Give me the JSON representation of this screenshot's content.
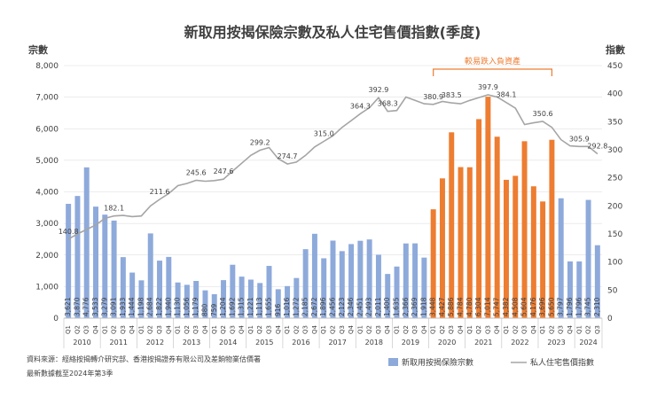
{
  "chart_data": {
    "type": "bar+line",
    "title": "新取用按揭保險宗數及私人住宅售價指數(季度)",
    "y_left_label": "宗數",
    "y_right_label": "指數",
    "ylim_left": [
      0,
      8000
    ],
    "ylim_right": [
      0,
      450
    ],
    "y_left_ticks": [
      "0",
      "1,000",
      "2,000",
      "3,000",
      "4,000",
      "5,000",
      "6,000",
      "7,000",
      "8,000"
    ],
    "y_right_ticks": [
      "0",
      "50",
      "100",
      "150",
      "200",
      "250",
      "300",
      "350",
      "400",
      "450"
    ],
    "quarter_labels": [
      "Q1",
      "Q2",
      "Q3",
      "Q4"
    ],
    "years": [
      "2010",
      "2011",
      "2012",
      "2013",
      "2014",
      "2015",
      "2016",
      "2017",
      "2018",
      "2019",
      "2020",
      "2021",
      "2022",
      "2023",
      "2024"
    ],
    "bar_values": [
      3621,
      3870,
      4776,
      3533,
      3279,
      3091,
      1933,
      1444,
      1198,
      2684,
      1822,
      1940,
      1130,
      1056,
      1179,
      880,
      759,
      1204,
      1692,
      1315,
      1221,
      1113,
      1655,
      916,
      1016,
      1272,
      2185,
      2672,
      1896,
      2456,
      2123,
      2346,
      2451,
      2493,
      2011,
      1400,
      1635,
      2366,
      2369,
      1918,
      3448,
      4427,
      5886,
      4784,
      4780,
      6304,
      7014,
      5747,
      4382,
      4508,
      5604,
      4176,
      3696,
      5650,
      3797,
      1796,
      1796,
      3745,
      2310
    ],
    "bar_labels": [
      "3,621",
      "3,870",
      "4,776",
      "3,533",
      "3,279",
      "3,091",
      "1,933",
      "1,444",
      "1,198",
      "2,684",
      "1,822",
      "1,940",
      "1,130",
      "1,056",
      "1,179",
      "880",
      "759",
      "1,204",
      "1,692",
      "1,315",
      "1,221",
      "1,113",
      "1,655",
      "916",
      "1,016",
      "1,272",
      "2,185",
      "2,672",
      "1,896",
      "2,456",
      "2,123",
      "2,346",
      "2,451",
      "2,493",
      "2,011",
      "1,400",
      "1,635",
      "2,366",
      "2,369",
      "1,918",
      "3,448",
      "4,427",
      "5,886",
      "4,784",
      "4,780",
      "6,304",
      "7,014",
      "5,747",
      "4,382",
      "4,508",
      "5,604",
      "4,176",
      "3,696",
      "5,650",
      "3,797",
      "1,796",
      "1,796",
      "3,745",
      "2,310"
    ],
    "highlight_range": [
      40,
      53
    ],
    "bar_colors": {
      "normal": "#8eaadb",
      "highlight": "#ed7d31"
    },
    "line_values": [
      140.8,
      150,
      158,
      166,
      178,
      182,
      183,
      181,
      182,
      200,
      211.6,
      222,
      236,
      240,
      245.6,
      244,
      245,
      247.6,
      262,
      276,
      290,
      299.2,
      304,
      284,
      274.7,
      278,
      290,
      305,
      315,
      325,
      340,
      352,
      364.3,
      375,
      392.9,
      368.3,
      370,
      394,
      388,
      382,
      380.9,
      386,
      383.5,
      382,
      388,
      393,
      397.9,
      394,
      384.1,
      374,
      345,
      348,
      350.6,
      340,
      318,
      307,
      305.9,
      305.9,
      292.8
    ],
    "line_labels": [
      {
        "i": 0,
        "text": "140.8"
      },
      {
        "i": 5,
        "text": "182.1"
      },
      {
        "i": 10,
        "text": "211.6"
      },
      {
        "i": 14,
        "text": "245.6"
      },
      {
        "i": 17,
        "text": "247.6"
      },
      {
        "i": 21,
        "text": "299.2"
      },
      {
        "i": 24,
        "text": "274.7"
      },
      {
        "i": 28,
        "text": "315.0"
      },
      {
        "i": 32,
        "text": "364.3"
      },
      {
        "i": 34,
        "text": "392.9"
      },
      {
        "i": 35,
        "text": "368.3"
      },
      {
        "i": 40,
        "text": "380.9"
      },
      {
        "i": 42,
        "text": "383.5"
      },
      {
        "i": 46,
        "text": "397.9"
      },
      {
        "i": 48,
        "text": "384.1"
      },
      {
        "i": 52,
        "text": "350.6"
      },
      {
        "i": 56,
        "text": "305.9"
      },
      {
        "i": 58,
        "text": "292.8"
      }
    ],
    "bracket_label": "較易跌入負資產",
    "legend": {
      "bar": "新取用按揭保險宗數",
      "line": "私人住宅售價指數"
    },
    "source_note": "資料來源：經絡按揭轉介研究部、香港按揭證券有限公司及差餉物業估價署",
    "update_note": "最新數據截至2024年第3季",
    "colors": {
      "line": "#a5a5a5",
      "axis": "#bfbfbf",
      "grid": "#d9d9d9",
      "text": "#404040"
    }
  }
}
